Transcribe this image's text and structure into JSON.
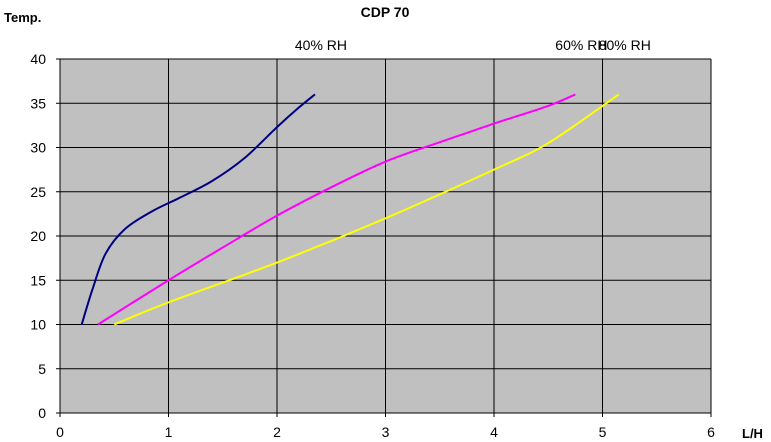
{
  "chart_data": {
    "type": "line",
    "title": "CDP 70",
    "xlabel": "L/H",
    "ylabel": "Temp.",
    "xlim": [
      0,
      6
    ],
    "ylim": [
      0,
      40
    ],
    "x_ticks": [
      0,
      1,
      2,
      3,
      4,
      5,
      6
    ],
    "y_ticks": [
      0,
      5,
      10,
      15,
      20,
      25,
      30,
      35,
      40
    ],
    "grid": true,
    "plot_background": "#c0c0c0",
    "series": [
      {
        "name": "40% RH",
        "color": "#000080",
        "points": [
          [
            0.2,
            10
          ],
          [
            0.3,
            14
          ],
          [
            0.42,
            18
          ],
          [
            0.6,
            20.8
          ],
          [
            0.85,
            22.8
          ],
          [
            1.1,
            24.3
          ],
          [
            1.4,
            26.2
          ],
          [
            1.7,
            28.8
          ],
          [
            2.0,
            32.3
          ],
          [
            2.2,
            34.5
          ],
          [
            2.35,
            36
          ]
        ]
      },
      {
        "name": "60% RH",
        "color": "#ff00ff",
        "points": [
          [
            0.35,
            10
          ],
          [
            1.0,
            15
          ],
          [
            1.5,
            18.7
          ],
          [
            2.0,
            22.3
          ],
          [
            2.5,
            25.5
          ],
          [
            3.0,
            28.4
          ],
          [
            3.5,
            30.6
          ],
          [
            4.0,
            32.7
          ],
          [
            4.5,
            34.7
          ],
          [
            4.75,
            36
          ]
        ]
      },
      {
        "name": "80% RH",
        "color": "#ffff00",
        "points": [
          [
            0.5,
            10
          ],
          [
            1.0,
            12.5
          ],
          [
            2.0,
            17
          ],
          [
            3.0,
            22
          ],
          [
            4.0,
            27.5
          ],
          [
            4.5,
            30.5
          ],
          [
            5.15,
            36
          ]
        ]
      }
    ]
  }
}
